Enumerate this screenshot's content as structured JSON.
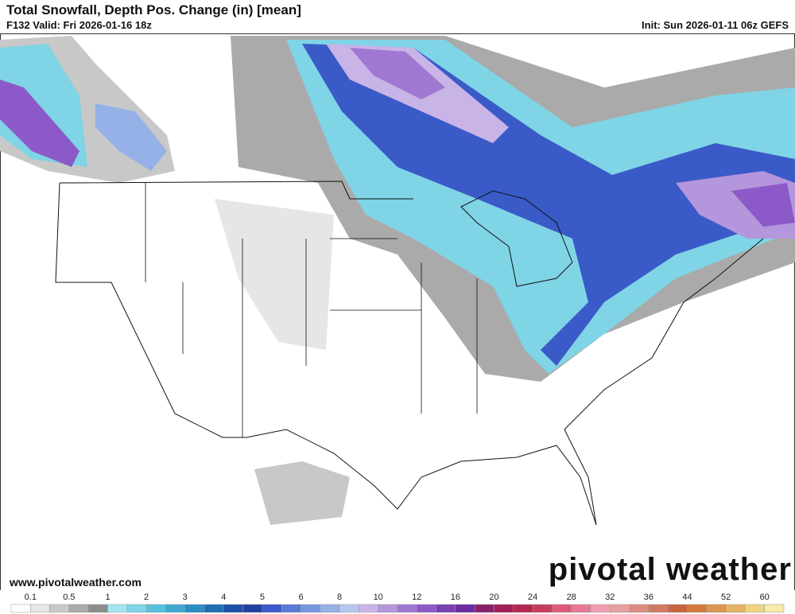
{
  "header": {
    "title": "Total Snowfall, Depth Pos. Change (in) [mean]",
    "valid": "F132 Valid: Fri 2026-01-16 18z",
    "init": "Init: Sun 2026-01-11 06z GEFS"
  },
  "footer": {
    "website": "www.pivotalweather.com",
    "brand": "pivotal weather"
  },
  "legend": {
    "ticks": [
      0.1,
      0.5,
      1,
      2,
      3,
      4,
      5,
      6,
      8,
      10,
      12,
      16,
      20,
      24,
      28,
      32,
      36,
      44,
      52,
      60
    ],
    "colors": [
      "#ffffff",
      "#e6e6e6",
      "#c8c8c8",
      "#aaaaaa",
      "#8c8c8c",
      "#a0e6f0",
      "#7fd4e6",
      "#5ac0dc",
      "#3ca8d0",
      "#2a8cc4",
      "#1e6eb4",
      "#1a50a8",
      "#2040a0",
      "#3a5ac8",
      "#5a7ad8",
      "#7896e0",
      "#96b0e8",
      "#b4c8f0",
      "#c8b4e6",
      "#b496dc",
      "#a078d2",
      "#8c5ac8",
      "#7a40b4",
      "#6a2ca0",
      "#8c1e6e",
      "#a01e5a",
      "#b42850",
      "#c83c5a",
      "#dc5a78",
      "#e67896",
      "#f0a0b4",
      "#e6a0a0",
      "#dc8c82",
      "#d27864",
      "#c8643c",
      "#d2783c",
      "#dc9650",
      "#e6b464",
      "#f0d282",
      "#f8eaa8"
    ]
  }
}
